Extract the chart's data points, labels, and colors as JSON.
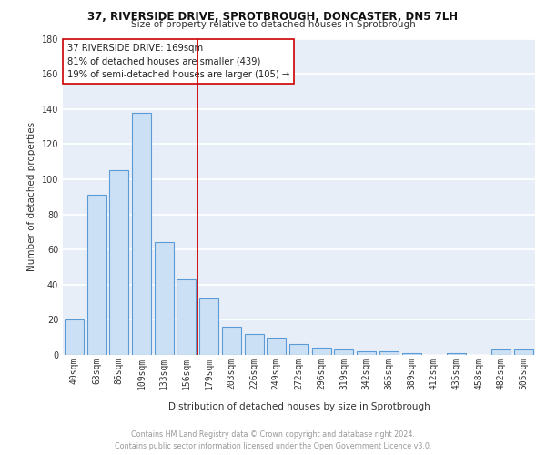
{
  "title_line1": "37, RIVERSIDE DRIVE, SPROTBROUGH, DONCASTER, DN5 7LH",
  "title_line2": "Size of property relative to detached houses in Sprotbrough",
  "xlabel": "Distribution of detached houses by size in Sprotbrough",
  "ylabel": "Number of detached properties",
  "categories": [
    "40sqm",
    "63sqm",
    "86sqm",
    "109sqm",
    "133sqm",
    "156sqm",
    "179sqm",
    "203sqm",
    "226sqm",
    "249sqm",
    "272sqm",
    "296sqm",
    "319sqm",
    "342sqm",
    "365sqm",
    "389sqm",
    "412sqm",
    "435sqm",
    "458sqm",
    "482sqm",
    "505sqm"
  ],
  "values": [
    20,
    91,
    105,
    138,
    64,
    43,
    32,
    16,
    12,
    10,
    6,
    4,
    3,
    2,
    2,
    1,
    0,
    1,
    0,
    3,
    3
  ],
  "bar_color": "#cce0f5",
  "bar_edge_color": "#5b9bd5",
  "vline_x_index": 5.5,
  "vline_color": "#cc0000",
  "annotation_line1": "37 RIVERSIDE DRIVE: 169sqm",
  "annotation_line2": "81% of detached houses are smaller (439)",
  "annotation_line3": "19% of semi-detached houses are larger (105) →",
  "background_color": "#e8eef8",
  "grid_color": "#ffffff",
  "footer_text": "Contains HM Land Registry data © Crown copyright and database right 2024.\nContains public sector information licensed under the Open Government Licence v3.0.",
  "ylim": [
    0,
    180
  ],
  "yticks": [
    0,
    20,
    40,
    60,
    80,
    100,
    120,
    140,
    160,
    180
  ],
  "title1_fontsize": 8.5,
  "title2_fontsize": 7.5,
  "xlabel_fontsize": 7.5,
  "ylabel_fontsize": 7.5,
  "tick_fontsize": 7,
  "footer_fontsize": 5.8,
  "ann_fontsize": 7.2
}
